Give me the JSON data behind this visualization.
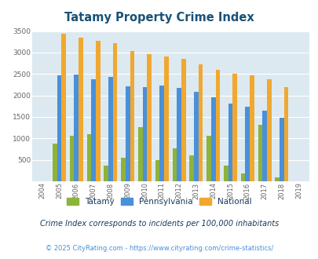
{
  "title": "Tatamy Property Crime Index",
  "title_color": "#1a5276",
  "years": [
    2004,
    2005,
    2006,
    2007,
    2008,
    2009,
    2010,
    2011,
    2012,
    2013,
    2014,
    2015,
    2016,
    2017,
    2018,
    2019
  ],
  "tatamy": [
    0,
    880,
    1060,
    1090,
    370,
    550,
    1270,
    500,
    760,
    610,
    1060,
    370,
    190,
    1310,
    100,
    0
  ],
  "pennsylvania": [
    0,
    2460,
    2480,
    2380,
    2440,
    2210,
    2190,
    2240,
    2170,
    2080,
    1950,
    1810,
    1730,
    1640,
    1490,
    0
  ],
  "national": [
    0,
    3440,
    3340,
    3270,
    3210,
    3040,
    2960,
    2900,
    2860,
    2730,
    2600,
    2500,
    2470,
    2370,
    2200,
    0
  ],
  "tatamy_color": "#8db33a",
  "pennsylvania_color": "#4a90d9",
  "national_color": "#f0a830",
  "bg_color": "#dce9f0",
  "ylim": [
    0,
    3500
  ],
  "yticks": [
    0,
    500,
    1000,
    1500,
    2000,
    2500,
    3000,
    3500
  ],
  "footnote": "Crime Index corresponds to incidents per 100,000 inhabitants",
  "copyright": "© 2025 CityRating.com - https://www.cityrating.com/crime-statistics/",
  "footnote_color": "#1a3a5c",
  "copyright_color": "#4a90d9",
  "bar_width": 0.26
}
